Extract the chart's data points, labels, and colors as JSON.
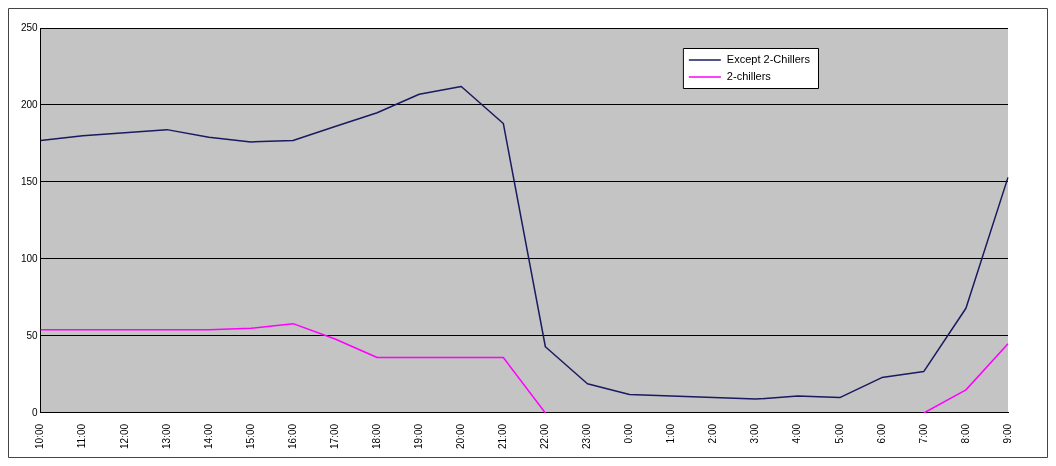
{
  "chart_data": {
    "type": "line",
    "categories": [
      "10:00",
      "11:00",
      "12:00",
      "13:00",
      "14:00",
      "15:00",
      "16:00",
      "17:00",
      "18:00",
      "19:00",
      "20:00",
      "21:00",
      "22:00",
      "23:00",
      "0:00",
      "1:00",
      "2:00",
      "3:00",
      "4:00",
      "5:00",
      "6:00",
      "7:00",
      "8:00",
      "9:00"
    ],
    "series": [
      {
        "name": "Except 2-Chillers",
        "color": "#1a1a60",
        "values": [
          177,
          180,
          182,
          184,
          179,
          176,
          177,
          186,
          195,
          207,
          212,
          188,
          43,
          19,
          12,
          11,
          10,
          9,
          11,
          10,
          23,
          27,
          68,
          153
        ]
      },
      {
        "name": "2-chillers",
        "color": "#ff00ff",
        "values": [
          54,
          54,
          54,
          54,
          54,
          55,
          58,
          48,
          36,
          36,
          36,
          36,
          0,
          null,
          null,
          null,
          null,
          null,
          null,
          null,
          null,
          0,
          15,
          45
        ]
      }
    ],
    "ylim": [
      0,
      250
    ],
    "yticks": [
      0,
      50,
      100,
      150,
      200,
      250
    ],
    "grid": "y",
    "legend": "top right",
    "marker": "none"
  }
}
